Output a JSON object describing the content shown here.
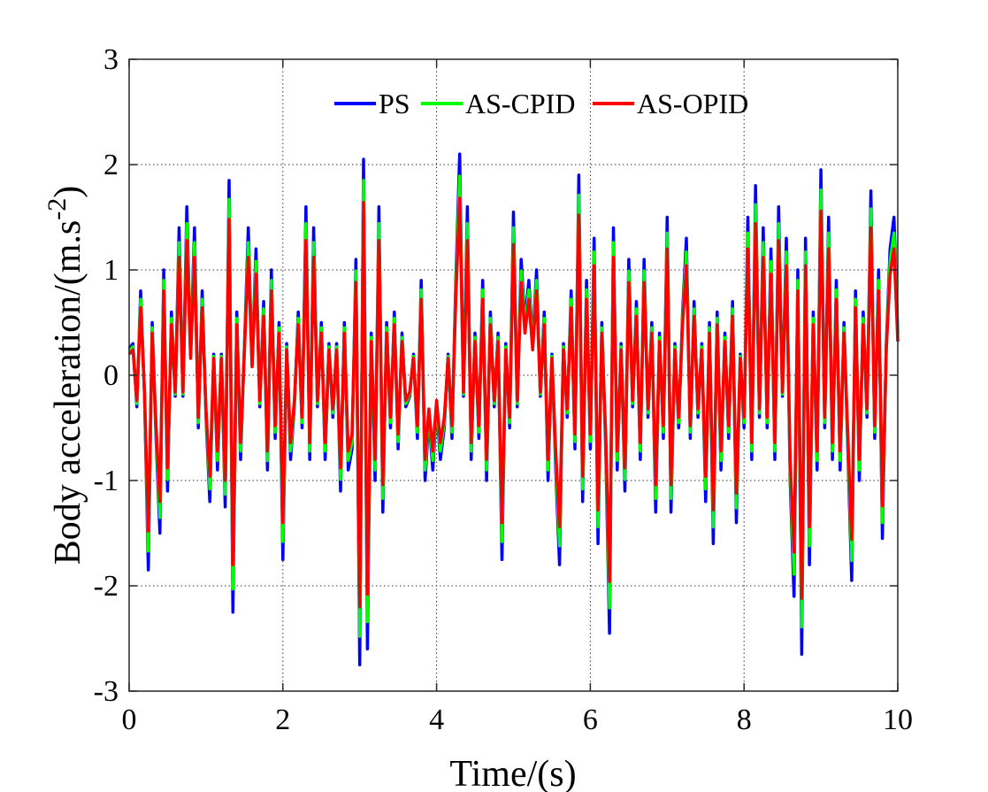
{
  "chart_data": {
    "type": "line",
    "title": "",
    "xlabel": "Time/(s)",
    "ylabel_main": "Body acceleration/(m.s",
    "ylabel_sup": "-2",
    "ylabel_close": ")",
    "xlim": [
      0,
      10
    ],
    "ylim": [
      -3,
      3
    ],
    "xticks": [
      "0",
      "2",
      "4",
      "6",
      "8",
      "10"
    ],
    "yticks": [
      "-3",
      "-2",
      "-1",
      "0",
      "1",
      "2",
      "3"
    ],
    "grid": true,
    "legend_placement": "top-center",
    "x_start": 0,
    "x_step": 0.05,
    "series": [
      {
        "name": "PS",
        "color": "#0000ff",
        "values": [
          0.25,
          0.3,
          -0.3,
          0.8,
          -0.2,
          -1.85,
          0.5,
          -0.6,
          -1.5,
          1.0,
          -1.1,
          0.6,
          -0.2,
          1.4,
          -0.2,
          1.6,
          0.2,
          1.4,
          -0.5,
          0.8,
          -0.4,
          -1.2,
          0.2,
          -0.9,
          0.2,
          -1.25,
          1.85,
          -2.25,
          0.6,
          -0.8,
          0.3,
          1.4,
          0.1,
          1.2,
          -0.3,
          0.7,
          -0.9,
          1.0,
          -0.6,
          0.5,
          -1.75,
          0.3,
          -0.8,
          -0.3,
          0.6,
          -0.5,
          1.6,
          -0.8,
          1.4,
          -0.3,
          0.5,
          -0.8,
          0.3,
          -0.4,
          0.3,
          -1.1,
          0.5,
          -0.9,
          -0.7,
          1.1,
          -2.75,
          2.05,
          -2.6,
          0.4,
          -1.0,
          1.6,
          -1.3,
          0.5,
          -0.5,
          0.6,
          -0.7,
          0.4,
          -0.3,
          -0.2,
          0.2,
          -0.6,
          0.9,
          -1.0,
          -0.4,
          -0.9,
          -0.3,
          -0.8,
          -0.5,
          0.2,
          -0.6,
          0.9,
          2.1,
          -0.2,
          1.6,
          -0.8,
          0.4,
          -0.6,
          0.9,
          -1.0,
          0.6,
          -0.3,
          0.4,
          -1.75,
          0.3,
          -0.5,
          1.55,
          -0.3,
          1.1,
          0.5,
          0.9,
          0.3,
          1.0,
          -0.2,
          0.6,
          -1.0,
          0.2,
          -0.9,
          -1.8,
          0.3,
          -0.4,
          0.8,
          -0.7,
          1.9,
          -1.2,
          0.9,
          -0.7,
          1.3,
          -1.6,
          0.5,
          -0.7,
          -2.45,
          1.4,
          -0.9,
          0.3,
          -1.1,
          1.1,
          -0.3,
          0.7,
          -0.8,
          1.1,
          -0.4,
          0.5,
          -1.3,
          0.4,
          -0.6,
          1.5,
          -1.3,
          0.3,
          -0.5,
          0.6,
          1.3,
          -0.6,
          0.7,
          -0.4,
          0.3,
          -1.2,
          0.5,
          -1.6,
          0.6,
          -0.9,
          0.4,
          -0.6,
          0.7,
          -1.4,
          0.2,
          -0.5,
          1.5,
          -0.8,
          1.8,
          -0.4,
          1.4,
          -0.5,
          1.2,
          -0.8,
          1.6,
          -0.2,
          1.3,
          -1.0,
          -2.1,
          1.0,
          -2.65,
          1.3,
          -1.8,
          0.6,
          -0.9,
          1.95,
          -0.5,
          1.5,
          -0.8,
          0.9,
          -0.9,
          0.5,
          -0.7,
          -1.95,
          0.8,
          -1.0,
          0.6,
          -0.4,
          1.75,
          -0.6,
          1.0,
          -1.55,
          0.3,
          1.2,
          1.5,
          0.4
        ]
      },
      {
        "name": "AS-CPID",
        "color": "#00ff00",
        "values": [
          0.23,
          0.27,
          -0.27,
          0.72,
          -0.18,
          -1.67,
          0.45,
          -0.54,
          -1.35,
          0.9,
          -0.99,
          0.54,
          -0.18,
          1.26,
          -0.18,
          1.44,
          0.18,
          1.26,
          -0.45,
          0.72,
          -0.36,
          -1.08,
          0.18,
          -0.81,
          0.18,
          -1.13,
          1.67,
          -2.03,
          0.54,
          -0.72,
          0.27,
          1.26,
          0.09,
          1.08,
          -0.27,
          0.63,
          -0.81,
          0.9,
          -0.54,
          0.45,
          -1.58,
          0.27,
          -0.72,
          -0.27,
          0.54,
          -0.45,
          1.44,
          -0.72,
          1.26,
          -0.27,
          0.45,
          -0.72,
          0.27,
          -0.36,
          0.27,
          -0.99,
          0.45,
          -0.81,
          -0.63,
          0.99,
          -2.48,
          1.85,
          -2.34,
          0.36,
          -0.9,
          1.44,
          -1.17,
          0.45,
          -0.45,
          0.54,
          -0.63,
          0.36,
          -0.27,
          -0.18,
          0.18,
          -0.54,
          0.81,
          -0.9,
          -0.36,
          -0.81,
          -0.27,
          -0.72,
          -0.45,
          0.18,
          -0.54,
          0.81,
          1.89,
          -0.18,
          1.44,
          -0.72,
          0.36,
          -0.54,
          0.81,
          -0.9,
          0.54,
          -0.27,
          0.36,
          -1.58,
          0.27,
          -0.45,
          1.4,
          -0.27,
          0.99,
          0.45,
          0.81,
          0.27,
          0.9,
          -0.18,
          0.54,
          -0.9,
          0.18,
          -0.81,
          -1.62,
          0.27,
          -0.36,
          0.72,
          -0.63,
          1.71,
          -1.08,
          0.81,
          -0.63,
          1.17,
          -1.44,
          0.45,
          -0.63,
          -2.21,
          1.26,
          -0.81,
          0.27,
          -0.99,
          0.99,
          -0.27,
          0.63,
          -0.72,
          0.99,
          -0.36,
          0.45,
          -1.17,
          0.36,
          -0.54,
          1.35,
          -1.17,
          0.27,
          -0.45,
          0.54,
          1.17,
          -0.54,
          0.63,
          -0.36,
          0.27,
          -1.08,
          0.45,
          -1.44,
          0.54,
          -0.81,
          0.36,
          -0.54,
          0.63,
          -1.26,
          0.18,
          -0.45,
          1.35,
          -0.72,
          1.62,
          -0.36,
          1.26,
          -0.45,
          1.08,
          -0.72,
          1.44,
          -0.18,
          1.17,
          -0.9,
          -1.89,
          0.9,
          -2.39,
          1.17,
          -1.62,
          0.54,
          -0.81,
          1.76,
          -0.45,
          1.35,
          -0.72,
          0.81,
          -0.81,
          0.45,
          -0.63,
          -1.76,
          0.72,
          -0.9,
          0.54,
          -0.36,
          1.58,
          -0.54,
          0.9,
          -1.4,
          0.27,
          1.08,
          1.35,
          0.36
        ]
      },
      {
        "name": "AS-OPID",
        "color": "#ff0000",
        "values": [
          0.2,
          0.24,
          -0.24,
          0.64,
          -0.16,
          -1.48,
          0.4,
          -0.48,
          -1.2,
          0.8,
          -0.88,
          0.48,
          -0.16,
          1.12,
          -0.16,
          1.28,
          0.16,
          1.12,
          -0.4,
          0.64,
          -0.32,
          -0.96,
          0.16,
          -0.72,
          0.16,
          -1.0,
          1.48,
          -1.8,
          0.48,
          -0.64,
          0.24,
          1.12,
          0.08,
          0.96,
          -0.24,
          0.56,
          -0.72,
          0.8,
          -0.48,
          0.4,
          -1.4,
          0.24,
          -0.64,
          -0.24,
          0.48,
          -0.4,
          1.28,
          -0.64,
          1.12,
          -0.24,
          0.4,
          -0.64,
          0.24,
          -0.32,
          0.24,
          -0.88,
          0.4,
          -0.72,
          -0.56,
          0.88,
          -2.2,
          1.64,
          -2.08,
          0.32,
          -0.8,
          1.28,
          -1.04,
          0.4,
          -0.4,
          0.48,
          -0.56,
          0.32,
          -0.24,
          -0.16,
          0.16,
          -0.48,
          0.72,
          -0.8,
          -0.32,
          -0.72,
          -0.24,
          -0.64,
          -0.4,
          0.16,
          -0.48,
          0.72,
          1.68,
          -0.16,
          1.28,
          -0.64,
          0.32,
          -0.48,
          0.72,
          -0.8,
          0.48,
          -0.24,
          0.32,
          -1.4,
          0.24,
          -0.4,
          1.24,
          -0.24,
          0.88,
          0.4,
          0.72,
          0.24,
          0.8,
          -0.16,
          0.48,
          -0.8,
          0.16,
          -0.72,
          -1.44,
          0.24,
          -0.32,
          0.64,
          -0.56,
          1.52,
          -0.96,
          0.72,
          -0.56,
          1.04,
          -1.28,
          0.4,
          -0.56,
          -1.96,
          1.12,
          -0.72,
          0.24,
          -0.88,
          0.88,
          -0.24,
          0.56,
          -0.64,
          0.88,
          -0.32,
          0.4,
          -1.04,
          0.32,
          -0.48,
          1.2,
          -1.04,
          0.24,
          -0.4,
          0.48,
          1.04,
          -0.48,
          0.56,
          -0.32,
          0.24,
          -0.96,
          0.4,
          -1.28,
          0.48,
          -0.72,
          0.32,
          -0.48,
          0.56,
          -1.12,
          0.16,
          -0.4,
          1.2,
          -0.64,
          1.44,
          -0.32,
          1.12,
          -0.4,
          0.96,
          -0.64,
          1.28,
          -0.16,
          1.04,
          -0.8,
          -1.68,
          0.8,
          -2.12,
          1.04,
          -1.44,
          0.48,
          -0.72,
          1.56,
          -0.4,
          1.2,
          -0.64,
          0.72,
          -0.72,
          0.4,
          -0.56,
          -1.56,
          0.64,
          -0.8,
          0.48,
          -0.32,
          1.4,
          -0.48,
          0.8,
          -1.24,
          0.24,
          0.96,
          1.2,
          0.32
        ]
      }
    ]
  }
}
